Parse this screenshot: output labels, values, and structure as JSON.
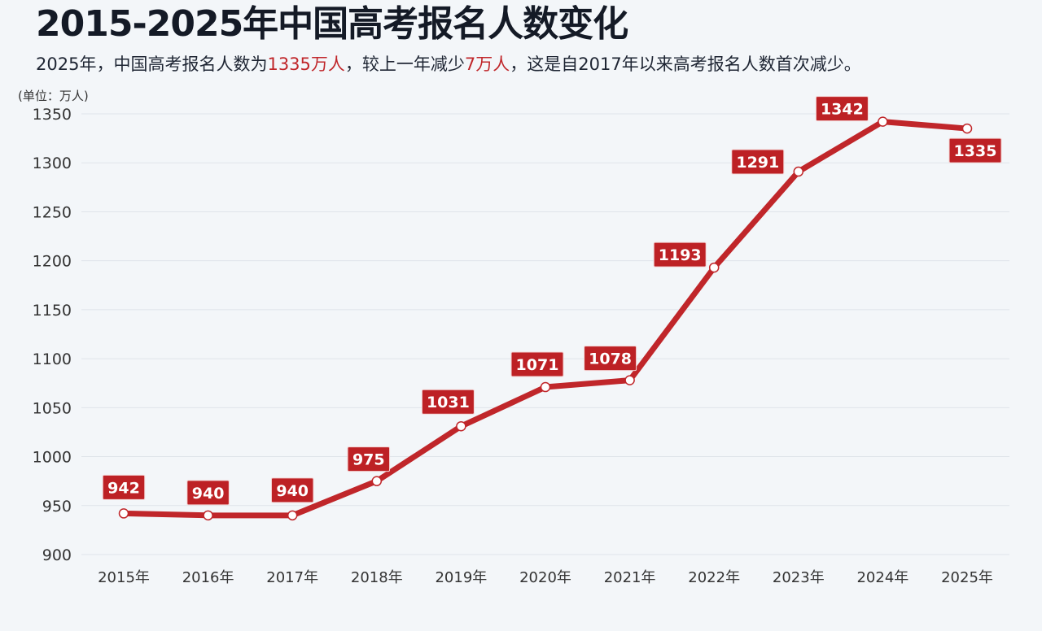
{
  "header": {
    "title": "2015-2025年中国高考报名人数变化",
    "subtitle_parts": [
      {
        "text": "2025年，中国高考报名人数为",
        "hl": false
      },
      {
        "text": "1335万人",
        "hl": true
      },
      {
        "text": "，较上一年减少",
        "hl": false
      },
      {
        "text": "7万人",
        "hl": true
      },
      {
        "text": "，这是自2017年以来高考报名人数首次减少。",
        "hl": false
      }
    ],
    "unit": "(单位：万人)"
  },
  "colors": {
    "line": "#c0262a",
    "label_bg": "#bd2125",
    "accent_text": "#c0262a",
    "grid": "#dfe4ea"
  },
  "chart_data": {
    "type": "line",
    "categories": [
      "2015年",
      "2016年",
      "2017年",
      "2018年",
      "2019年",
      "2020年",
      "2021年",
      "2022年",
      "2023年",
      "2024年",
      "2025年"
    ],
    "series": [
      {
        "values": [
          942,
          940,
          940,
          975,
          1031,
          1071,
          1078,
          1193,
          1291,
          1342,
          1335
        ]
      }
    ],
    "data_labels": [
      "942",
      "940",
      "940",
      "975",
      "1031",
      "1071",
      "1078",
      "1193",
      "1291",
      "1342",
      "1335"
    ],
    "ylim": [
      900,
      1350
    ],
    "yticks": [
      "900",
      "950",
      "1000",
      "1050",
      "1100",
      "1150",
      "1200",
      "1250",
      "1300",
      "1350"
    ],
    "grid": true,
    "legend": "none"
  }
}
